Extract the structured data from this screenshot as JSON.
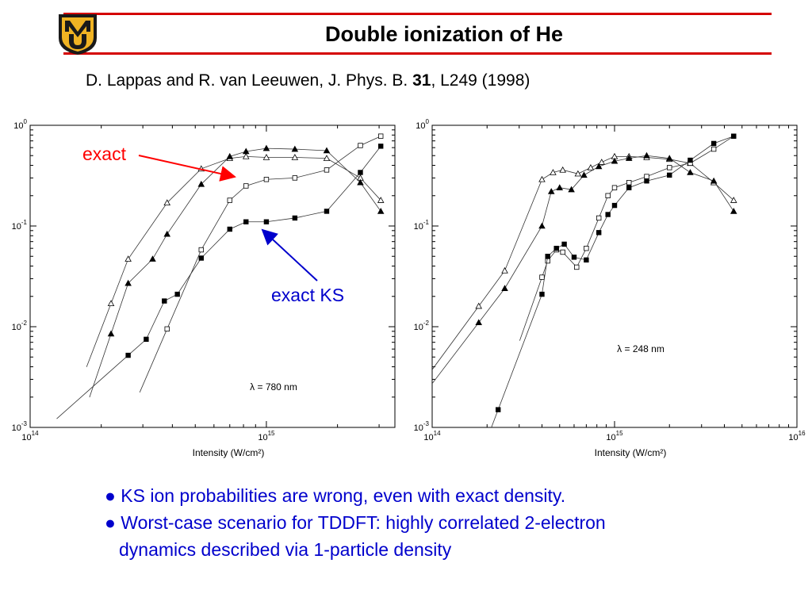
{
  "header": {
    "title": "Double ionization of He",
    "logo_letters": "MU",
    "accent_color": "#d40000"
  },
  "citation": {
    "authors_journal": "D. Lappas and R. van Leeuwen, J. Phys. B. ",
    "volume": "31",
    "pages_year": ", L249 (1998)"
  },
  "annotations": {
    "exact": "exact",
    "exact_ks": "exact KS",
    "exact_color": "#ff0000",
    "exact_ks_color": "#0000cc"
  },
  "bullets": {
    "item1": "● KS ion probabilities are wrong, even with exact density.",
    "item2": "● Worst-case scenario for TDDFT: highly correlated 2-electron",
    "item2_cont": "dynamics described via 1-particle density"
  },
  "chart_data": [
    {
      "type": "scatter",
      "xlabel": "Intensity (W/cm²)",
      "ylabel": "",
      "xscale": "log",
      "yscale": "log",
      "xlim": [
        100000000000000.0,
        3500000000000000.0
      ],
      "ylim": [
        0.001,
        1
      ],
      "x_ticks": [
        "10^14",
        "10^15"
      ],
      "y_ticks": [
        "10^0",
        "10^-1",
        "10^-2",
        "10^-3"
      ],
      "annotation": "λ = 780 nm",
      "series": [
        {
          "marker": "open-triangle",
          "x": [
            220000000000000.0,
            260000000000000.0,
            380000000000000.0,
            530000000000000.0,
            700000000000000.0,
            820000000000000.0,
            1000000000000000.0,
            1320000000000000.0,
            1800000000000000.0,
            2500000000000000.0,
            3050000000000000.0
          ],
          "y": [
            0.017,
            0.047,
            0.17,
            0.37,
            0.47,
            0.49,
            0.48,
            0.48,
            0.47,
            0.3,
            0.18
          ]
        },
        {
          "marker": "filled-triangle",
          "x": [
            220000000000000.0,
            260000000000000.0,
            330000000000000.0,
            380000000000000.0,
            530000000000000.0,
            700000000000000.0,
            820000000000000.0,
            1000000000000000.0,
            1320000000000000.0,
            1800000000000000.0,
            2500000000000000.0,
            3050000000000000.0
          ],
          "y": [
            0.0085,
            0.027,
            0.047,
            0.083,
            0.26,
            0.49,
            0.55,
            0.59,
            0.58,
            0.56,
            0.27,
            0.14
          ]
        },
        {
          "marker": "open-square",
          "x": [
            380000000000000.0,
            530000000000000.0,
            700000000000000.0,
            820000000000000.0,
            1000000000000000.0,
            1320000000000000.0,
            1800000000000000.0,
            2500000000000000.0,
            3050000000000000.0
          ],
          "y": [
            0.0095,
            0.058,
            0.18,
            0.25,
            0.29,
            0.3,
            0.36,
            0.63,
            0.78
          ]
        },
        {
          "marker": "filled-square",
          "x": [
            260000000000000.0,
            310000000000000.0,
            370000000000000.0,
            420000000000000.0,
            530000000000000.0,
            700000000000000.0,
            820000000000000.0,
            1000000000000000.0,
            1320000000000000.0,
            1800000000000000.0,
            2500000000000000.0,
            3050000000000000.0
          ],
          "y": [
            0.0052,
            0.0075,
            0.018,
            0.021,
            0.048,
            0.093,
            0.11,
            0.11,
            0.12,
            0.14,
            0.34,
            0.62
          ]
        }
      ]
    },
    {
      "type": "scatter",
      "xlabel": "Intensity (W/cm²)",
      "ylabel": "",
      "xscale": "log",
      "yscale": "log",
      "xlim": [
        100000000000000.0,
        1e+16
      ],
      "ylim": [
        0.001,
        1
      ],
      "x_ticks": [
        "10^14",
        "10^15",
        "10^16"
      ],
      "y_ticks": [
        "10^0",
        "10^-1",
        "10^-2",
        "10^-3"
      ],
      "annotation": "λ = 248 nm",
      "series": [
        {
          "marker": "open-triangle",
          "x": [
            180000000000000.0,
            250000000000000.0,
            400000000000000.0,
            460000000000000.0,
            520000000000000.0,
            630000000000000.0,
            740000000000000.0,
            850000000000000.0,
            1000000000000000.0,
            1200000000000000.0,
            1500000000000000.0,
            2000000000000000.0,
            2600000000000000.0,
            3500000000000000.0,
            4500000000000000.0
          ],
          "y": [
            0.016,
            0.036,
            0.29,
            0.34,
            0.36,
            0.33,
            0.38,
            0.43,
            0.49,
            0.49,
            0.48,
            0.46,
            0.42,
            0.27,
            0.18
          ]
        },
        {
          "marker": "filled-triangle",
          "x": [
            180000000000000.0,
            250000000000000.0,
            400000000000000.0,
            450000000000000.0,
            500000000000000.0,
            580000000000000.0,
            680000000000000.0,
            820000000000000.0,
            1000000000000000.0,
            1200000000000000.0,
            1500000000000000.0,
            2000000000000000.0,
            2600000000000000.0,
            3500000000000000.0,
            4500000000000000.0
          ],
          "y": [
            0.011,
            0.024,
            0.1,
            0.22,
            0.24,
            0.23,
            0.32,
            0.39,
            0.44,
            0.47,
            0.5,
            0.47,
            0.34,
            0.28,
            0.14
          ]
        },
        {
          "marker": "open-square",
          "x": [
            400000000000000.0,
            430000000000000.0,
            480000000000000.0,
            520000000000000.0,
            620000000000000.0,
            700000000000000.0,
            820000000000000.0,
            920000000000000.0,
            1000000000000000.0,
            1200000000000000.0,
            1500000000000000.0,
            2000000000000000.0,
            2600000000000000.0,
            3500000000000000.0,
            4500000000000000.0
          ],
          "y": [
            0.031,
            0.045,
            0.058,
            0.055,
            0.039,
            0.06,
            0.12,
            0.2,
            0.24,
            0.27,
            0.31,
            0.38,
            0.42,
            0.58,
            0.78
          ]
        },
        {
          "marker": "filled-square",
          "x": [
            230000000000000.0,
            400000000000000.0,
            430000000000000.0,
            480000000000000.0,
            530000000000000.0,
            600000000000000.0,
            700000000000000.0,
            820000000000000.0,
            920000000000000.0,
            1000000000000000.0,
            1200000000000000.0,
            1500000000000000.0,
            2000000000000000.0,
            2600000000000000.0,
            3500000000000000.0,
            4500000000000000.0
          ],
          "y": [
            0.0015,
            0.021,
            0.05,
            0.06,
            0.066,
            0.049,
            0.046,
            0.086,
            0.13,
            0.16,
            0.24,
            0.28,
            0.32,
            0.45,
            0.66,
            0.78
          ]
        }
      ]
    }
  ]
}
